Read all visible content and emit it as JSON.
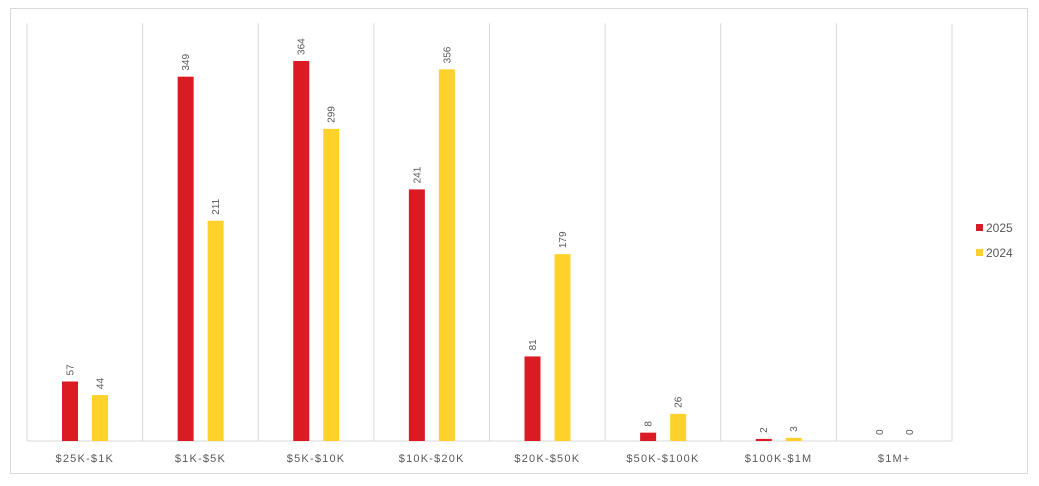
{
  "chart_data": {
    "type": "bar",
    "title": "",
    "xlabel": "",
    "ylabel": "",
    "ylim": [
      0,
      400
    ],
    "grid": "vertical category separators",
    "legend_position": "right",
    "categories": [
      "$25K-$1K",
      "$1K-$5K",
      "$5K-$10K",
      "$10K-$20K",
      "$20K-$50K",
      "$50K-$100K",
      "$100K-$1M",
      "$1M+"
    ],
    "series": [
      {
        "name": "2025",
        "color": "#DA1B24",
        "values": [
          57,
          349,
          364,
          241,
          81,
          8,
          2,
          0
        ]
      },
      {
        "name": "2024",
        "color": "#FFD22B",
        "values": [
          44,
          211,
          299,
          356,
          179,
          26,
          3,
          0
        ]
      }
    ]
  }
}
